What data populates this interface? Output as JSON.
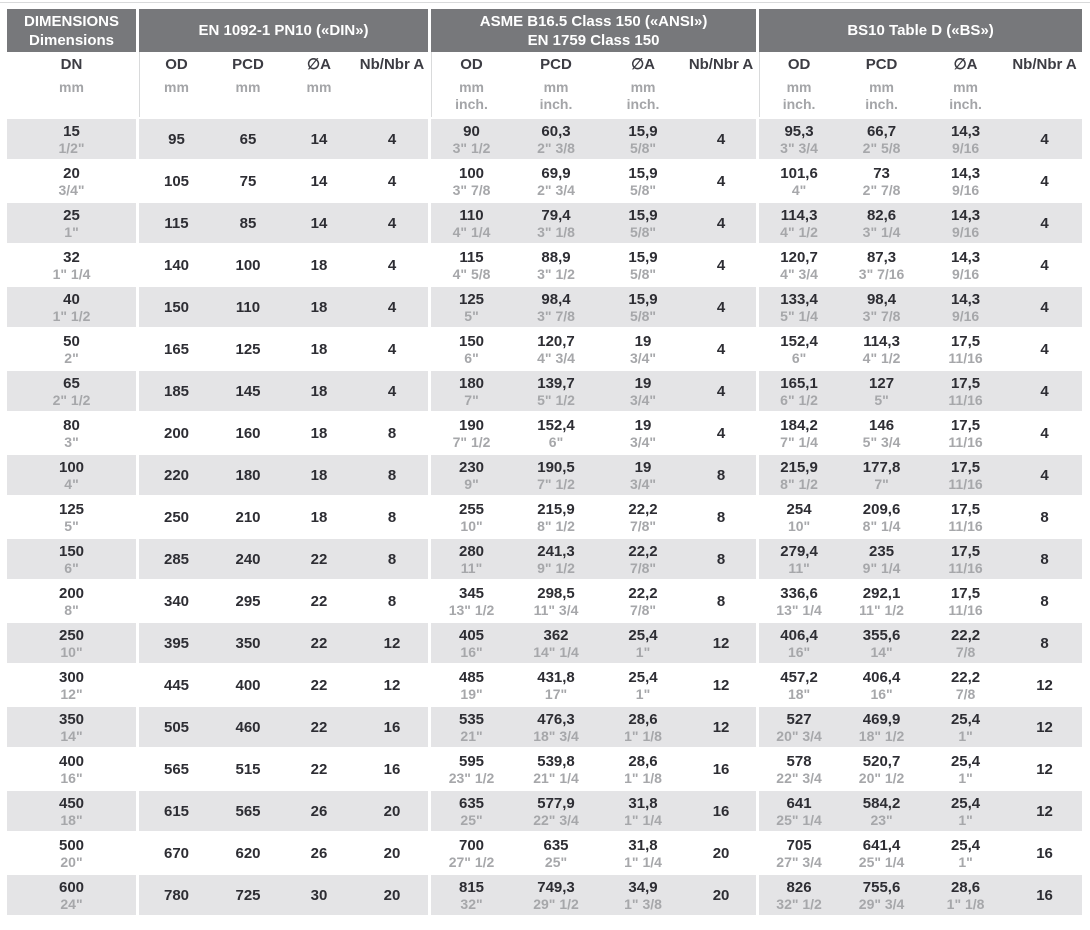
{
  "header": {
    "col_dimensions_line1": "DIMENSIONS",
    "col_dimensions_line2": "Dimensions",
    "group_din": "EN 1092-1 PN10 («DIN»)",
    "group_asme_line1": "ASME B16.5 Class 150 («ANSI»)",
    "group_asme_line2": "EN 1759 Class 150",
    "group_bs": "BS10 Table D («BS»)",
    "columns": {
      "dn": "DN",
      "od": "OD",
      "pcd": "PCD",
      "dia": "∅A",
      "nb": "Nb/Nbr A"
    },
    "units": {
      "mm": "mm",
      "inch": "inch."
    }
  },
  "colors": {
    "header_bg": "#77787b",
    "header_text": "#ffffff",
    "row_alt_bg": "#e4e4e6",
    "value_text": "#2d2d33",
    "secondary_text": "#a6a7aa"
  },
  "rows": [
    {
      "dn": "15",
      "dn_inch": "1/2\"",
      "din": {
        "od": "95",
        "pcd": "65",
        "dia": "14",
        "nb": "4"
      },
      "asme": {
        "od": "90",
        "od_inch": "3\" 1/2",
        "pcd": "60,3",
        "pcd_inch": "2\" 3/8",
        "dia": "15,9",
        "dia_inch": "5/8\"",
        "nb": "4"
      },
      "bs": {
        "od": "95,3",
        "od_inch": "3\" 3/4",
        "pcd": "66,7",
        "pcd_inch": "2\" 5/8",
        "dia": "14,3",
        "dia_inch": "9/16",
        "nb": "4"
      }
    },
    {
      "dn": "20",
      "dn_inch": "3/4\"",
      "din": {
        "od": "105",
        "pcd": "75",
        "dia": "14",
        "nb": "4"
      },
      "asme": {
        "od": "100",
        "od_inch": "3\" 7/8",
        "pcd": "69,9",
        "pcd_inch": "2\" 3/4",
        "dia": "15,9",
        "dia_inch": "5/8\"",
        "nb": "4"
      },
      "bs": {
        "od": "101,6",
        "od_inch": "4\"",
        "pcd": "73",
        "pcd_inch": "2\" 7/8",
        "dia": "14,3",
        "dia_inch": "9/16",
        "nb": "4"
      }
    },
    {
      "dn": "25",
      "dn_inch": "1\"",
      "din": {
        "od": "115",
        "pcd": "85",
        "dia": "14",
        "nb": "4"
      },
      "asme": {
        "od": "110",
        "od_inch": "4\" 1/4",
        "pcd": "79,4",
        "pcd_inch": "3\" 1/8",
        "dia": "15,9",
        "dia_inch": "5/8\"",
        "nb": "4"
      },
      "bs": {
        "od": "114,3",
        "od_inch": "4\" 1/2",
        "pcd": "82,6",
        "pcd_inch": "3\" 1/4",
        "dia": "14,3",
        "dia_inch": "9/16",
        "nb": "4"
      }
    },
    {
      "dn": "32",
      "dn_inch": "1\" 1/4",
      "din": {
        "od": "140",
        "pcd": "100",
        "dia": "18",
        "nb": "4"
      },
      "asme": {
        "od": "115",
        "od_inch": "4\" 5/8",
        "pcd": "88,9",
        "pcd_inch": "3\" 1/2",
        "dia": "15,9",
        "dia_inch": "5/8\"",
        "nb": "4"
      },
      "bs": {
        "od": "120,7",
        "od_inch": "4\" 3/4",
        "pcd": "87,3",
        "pcd_inch": "3\" 7/16",
        "dia": "14,3",
        "dia_inch": "9/16",
        "nb": "4"
      }
    },
    {
      "dn": "40",
      "dn_inch": "1\" 1/2",
      "din": {
        "od": "150",
        "pcd": "110",
        "dia": "18",
        "nb": "4"
      },
      "asme": {
        "od": "125",
        "od_inch": "5\"",
        "pcd": "98,4",
        "pcd_inch": "3\" 7/8",
        "dia": "15,9",
        "dia_inch": "5/8\"",
        "nb": "4"
      },
      "bs": {
        "od": "133,4",
        "od_inch": "5\" 1/4",
        "pcd": "98,4",
        "pcd_inch": "3\" 7/8",
        "dia": "14,3",
        "dia_inch": "9/16",
        "nb": "4"
      }
    },
    {
      "dn": "50",
      "dn_inch": "2\"",
      "din": {
        "od": "165",
        "pcd": "125",
        "dia": "18",
        "nb": "4"
      },
      "asme": {
        "od": "150",
        "od_inch": "6\"",
        "pcd": "120,7",
        "pcd_inch": "4\" 3/4",
        "dia": "19",
        "dia_inch": "3/4\"",
        "nb": "4"
      },
      "bs": {
        "od": "152,4",
        "od_inch": "6\"",
        "pcd": "114,3",
        "pcd_inch": "4\" 1/2",
        "dia": "17,5",
        "dia_inch": "11/16",
        "nb": "4"
      }
    },
    {
      "dn": "65",
      "dn_inch": "2\" 1/2",
      "din": {
        "od": "185",
        "pcd": "145",
        "dia": "18",
        "nb": "4"
      },
      "asme": {
        "od": "180",
        "od_inch": "7\"",
        "pcd": "139,7",
        "pcd_inch": "5\" 1/2",
        "dia": "19",
        "dia_inch": "3/4\"",
        "nb": "4"
      },
      "bs": {
        "od": "165,1",
        "od_inch": "6\" 1/2",
        "pcd": "127",
        "pcd_inch": "5\"",
        "dia": "17,5",
        "dia_inch": "11/16",
        "nb": "4"
      }
    },
    {
      "dn": "80",
      "dn_inch": "3\"",
      "din": {
        "od": "200",
        "pcd": "160",
        "dia": "18",
        "nb": "8"
      },
      "asme": {
        "od": "190",
        "od_inch": "7\" 1/2",
        "pcd": "152,4",
        "pcd_inch": "6\"",
        "dia": "19",
        "dia_inch": "3/4\"",
        "nb": "4"
      },
      "bs": {
        "od": "184,2",
        "od_inch": "7\" 1/4",
        "pcd": "146",
        "pcd_inch": "5\" 3/4",
        "dia": "17,5",
        "dia_inch": "11/16",
        "nb": "4"
      }
    },
    {
      "dn": "100",
      "dn_inch": "4\"",
      "din": {
        "od": "220",
        "pcd": "180",
        "dia": "18",
        "nb": "8"
      },
      "asme": {
        "od": "230",
        "od_inch": "9\"",
        "pcd": "190,5",
        "pcd_inch": "7\" 1/2",
        "dia": "19",
        "dia_inch": "3/4\"",
        "nb": "8"
      },
      "bs": {
        "od": "215,9",
        "od_inch": "8\" 1/2",
        "pcd": "177,8",
        "pcd_inch": "7\"",
        "dia": "17,5",
        "dia_inch": "11/16",
        "nb": "4"
      }
    },
    {
      "dn": "125",
      "dn_inch": "5\"",
      "din": {
        "od": "250",
        "pcd": "210",
        "dia": "18",
        "nb": "8"
      },
      "asme": {
        "od": "255",
        "od_inch": "10\"",
        "pcd": "215,9",
        "pcd_inch": "8\" 1/2",
        "dia": "22,2",
        "dia_inch": "7/8\"",
        "nb": "8"
      },
      "bs": {
        "od": "254",
        "od_inch": "10\"",
        "pcd": "209,6",
        "pcd_inch": "8\" 1/4",
        "dia": "17,5",
        "dia_inch": "11/16",
        "nb": "8"
      }
    },
    {
      "dn": "150",
      "dn_inch": "6\"",
      "din": {
        "od": "285",
        "pcd": "240",
        "dia": "22",
        "nb": "8"
      },
      "asme": {
        "od": "280",
        "od_inch": "11\"",
        "pcd": "241,3",
        "pcd_inch": "9\" 1/2",
        "dia": "22,2",
        "dia_inch": "7/8\"",
        "nb": "8"
      },
      "bs": {
        "od": "279,4",
        "od_inch": "11\"",
        "pcd": "235",
        "pcd_inch": "9\" 1/4",
        "dia": "17,5",
        "dia_inch": "11/16",
        "nb": "8"
      }
    },
    {
      "dn": "200",
      "dn_inch": "8\"",
      "din": {
        "od": "340",
        "pcd": "295",
        "dia": "22",
        "nb": "8"
      },
      "asme": {
        "od": "345",
        "od_inch": "13\" 1/2",
        "pcd": "298,5",
        "pcd_inch": "11\" 3/4",
        "dia": "22,2",
        "dia_inch": "7/8\"",
        "nb": "8"
      },
      "bs": {
        "od": "336,6",
        "od_inch": "13\" 1/4",
        "pcd": "292,1",
        "pcd_inch": "11\" 1/2",
        "dia": "17,5",
        "dia_inch": "11/16",
        "nb": "8"
      }
    },
    {
      "dn": "250",
      "dn_inch": "10\"",
      "din": {
        "od": "395",
        "pcd": "350",
        "dia": "22",
        "nb": "12"
      },
      "asme": {
        "od": "405",
        "od_inch": "16\"",
        "pcd": "362",
        "pcd_inch": "14\" 1/4",
        "dia": "25,4",
        "dia_inch": "1\"",
        "nb": "12"
      },
      "bs": {
        "od": "406,4",
        "od_inch": "16\"",
        "pcd": "355,6",
        "pcd_inch": "14\"",
        "dia": "22,2",
        "dia_inch": "7/8",
        "nb": "8"
      }
    },
    {
      "dn": "300",
      "dn_inch": "12\"",
      "din": {
        "od": "445",
        "pcd": "400",
        "dia": "22",
        "nb": "12"
      },
      "asme": {
        "od": "485",
        "od_inch": "19\"",
        "pcd": "431,8",
        "pcd_inch": "17\"",
        "dia": "25,4",
        "dia_inch": "1\"",
        "nb": "12"
      },
      "bs": {
        "od": "457,2",
        "od_inch": "18\"",
        "pcd": "406,4",
        "pcd_inch": "16\"",
        "dia": "22,2",
        "dia_inch": "7/8",
        "nb": "12"
      }
    },
    {
      "dn": "350",
      "dn_inch": "14\"",
      "din": {
        "od": "505",
        "pcd": "460",
        "dia": "22",
        "nb": "16"
      },
      "asme": {
        "od": "535",
        "od_inch": "21\"",
        "pcd": "476,3",
        "pcd_inch": "18\" 3/4",
        "dia": "28,6",
        "dia_inch": "1\" 1/8",
        "nb": "12"
      },
      "bs": {
        "od": "527",
        "od_inch": "20\" 3/4",
        "pcd": "469,9",
        "pcd_inch": "18\" 1/2",
        "dia": "25,4",
        "dia_inch": "1\"",
        "nb": "12"
      }
    },
    {
      "dn": "400",
      "dn_inch": "16\"",
      "din": {
        "od": "565",
        "pcd": "515",
        "dia": "22",
        "nb": "16"
      },
      "asme": {
        "od": "595",
        "od_inch": "23\" 1/2",
        "pcd": "539,8",
        "pcd_inch": "21\" 1/4",
        "dia": "28,6",
        "dia_inch": "1\" 1/8",
        "nb": "16"
      },
      "bs": {
        "od": "578",
        "od_inch": "22\" 3/4",
        "pcd": "520,7",
        "pcd_inch": "20\" 1/2",
        "dia": "25,4",
        "dia_inch": "1\"",
        "nb": "12"
      }
    },
    {
      "dn": "450",
      "dn_inch": "18\"",
      "din": {
        "od": "615",
        "pcd": "565",
        "dia": "26",
        "nb": "20"
      },
      "asme": {
        "od": "635",
        "od_inch": "25\"",
        "pcd": "577,9",
        "pcd_inch": "22\" 3/4",
        "dia": "31,8",
        "dia_inch": "1\" 1/4",
        "nb": "16"
      },
      "bs": {
        "od": "641",
        "od_inch": "25\" 1/4",
        "pcd": "584,2",
        "pcd_inch": "23\"",
        "dia": "25,4",
        "dia_inch": "1\"",
        "nb": "12"
      }
    },
    {
      "dn": "500",
      "dn_inch": "20\"",
      "din": {
        "od": "670",
        "pcd": "620",
        "dia": "26",
        "nb": "20"
      },
      "asme": {
        "od": "700",
        "od_inch": "27\" 1/2",
        "pcd": "635",
        "pcd_inch": "25\"",
        "dia": "31,8",
        "dia_inch": "1\" 1/4",
        "nb": "20"
      },
      "bs": {
        "od": "705",
        "od_inch": "27\" 3/4",
        "pcd": "641,4",
        "pcd_inch": "25\" 1/4",
        "dia": "25,4",
        "dia_inch": "1\"",
        "nb": "16"
      }
    },
    {
      "dn": "600",
      "dn_inch": "24\"",
      "din": {
        "od": "780",
        "pcd": "725",
        "dia": "30",
        "nb": "20"
      },
      "asme": {
        "od": "815",
        "od_inch": "32\"",
        "pcd": "749,3",
        "pcd_inch": "29\" 1/2",
        "dia": "34,9",
        "dia_inch": "1\" 3/8",
        "nb": "20"
      },
      "bs": {
        "od": "826",
        "od_inch": "32\" 1/2",
        "pcd": "755,6",
        "pcd_inch": "29\" 3/4",
        "dia": "28,6",
        "dia_inch": "1\" 1/8",
        "nb": "16"
      }
    }
  ]
}
